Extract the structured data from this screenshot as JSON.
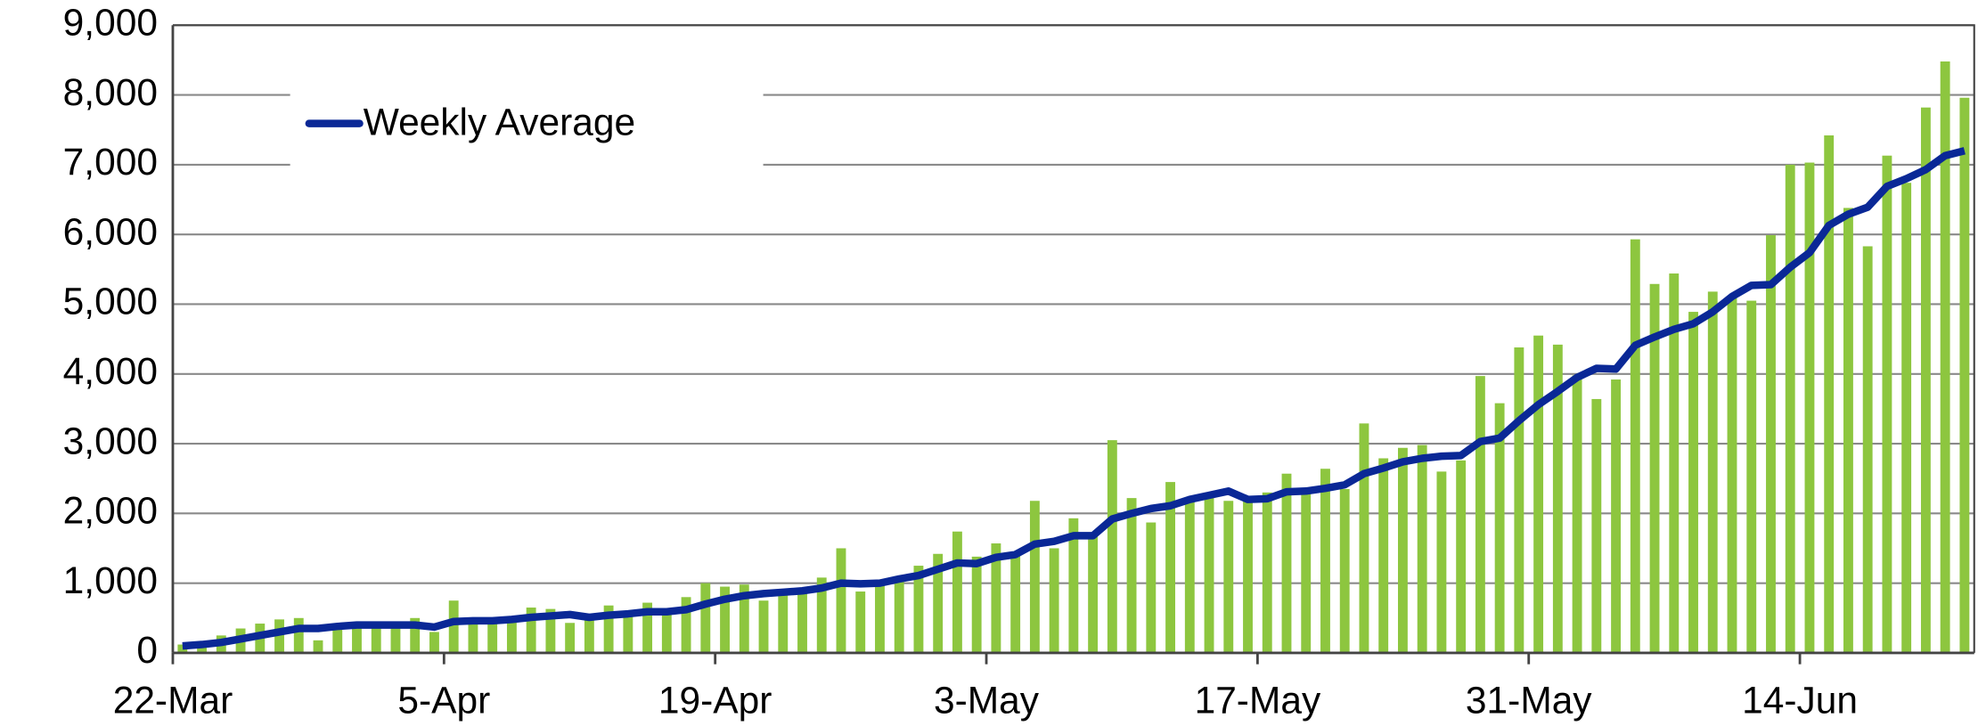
{
  "chart_data": {
    "type": "bar-line",
    "categories": [
      "22-Mar",
      null,
      null,
      null,
      null,
      null,
      null,
      null,
      null,
      null,
      null,
      null,
      null,
      null,
      "5-Apr",
      null,
      null,
      null,
      null,
      null,
      null,
      null,
      null,
      null,
      null,
      null,
      null,
      null,
      "19-Apr",
      null,
      null,
      null,
      null,
      null,
      null,
      null,
      null,
      null,
      null,
      null,
      null,
      null,
      "3-May",
      null,
      null,
      null,
      null,
      null,
      null,
      null,
      null,
      null,
      null,
      null,
      null,
      null,
      "17-May",
      null,
      null,
      null,
      null,
      null,
      null,
      null,
      null,
      null,
      null,
      null,
      null,
      null,
      "31-May",
      null,
      null,
      null,
      null,
      null,
      null,
      null,
      null,
      null,
      null,
      null,
      null,
      null,
      "14-Jun",
      null,
      null,
      null,
      null,
      null,
      null,
      null,
      null
    ],
    "series": [
      {
        "type": "bar",
        "color": "#8dc63f",
        "values": [
          120,
          150,
          250,
          350,
          420,
          480,
          500,
          180,
          380,
          350,
          380,
          400,
          500,
          300,
          750,
          450,
          430,
          500,
          650,
          630,
          430,
          550,
          680,
          600,
          720,
          620,
          800,
          1000,
          950,
          980,
          750,
          850,
          900,
          1080,
          1500,
          880,
          970,
          1100,
          1250,
          1420,
          1740,
          1380,
          1570,
          1450,
          2180,
          1500,
          1930,
          1700,
          3050,
          2220,
          1870,
          2450,
          2230,
          2250,
          2180,
          2230,
          2300,
          2570,
          2350,
          2640,
          2350,
          3290,
          2790,
          2940,
          2980,
          2600,
          2760,
          3970,
          3580,
          4380,
          4550,
          4420,
          3980,
          3640,
          3920,
          5930,
          5290,
          5440,
          4890,
          5180,
          5100,
          5050,
          5990,
          7000,
          7030,
          7420,
          6380,
          5830,
          7130,
          6740,
          7820,
          8480,
          7960
        ]
      },
      {
        "type": "line",
        "name": "Weekly Average",
        "color": "#0a2896",
        "values": [
          100,
          120,
          150,
          200,
          250,
          300,
          350,
          350,
          380,
          400,
          400,
          400,
          400,
          370,
          450,
          460,
          460,
          480,
          510,
          530,
          550,
          510,
          540,
          560,
          590,
          590,
          620,
          700,
          770,
          820,
          850,
          870,
          890,
          930,
          1000,
          990,
          1000,
          1060,
          1110,
          1200,
          1290,
          1280,
          1370,
          1410,
          1560,
          1600,
          1680,
          1680,
          1920,
          2000,
          2070,
          2110,
          2200,
          2260,
          2320,
          2200,
          2210,
          2310,
          2320,
          2360,
          2410,
          2570,
          2650,
          2740,
          2790,
          2820,
          2830,
          3030,
          3080,
          3330,
          3560,
          3750,
          3950,
          4080,
          4070,
          4410,
          4530,
          4640,
          4720,
          4890,
          5110,
          5270,
          5280,
          5530,
          5740,
          6130,
          6290,
          6390,
          6690,
          6800,
          6930,
          7130,
          7200
        ]
      }
    ],
    "ylim": [
      0,
      9000
    ],
    "yticks": [
      0,
      {
        "value": 1000,
        "label": "1,000"
      },
      {
        "value": 2000,
        "label": "2,000"
      },
      {
        "value": 3000,
        "label": "3,000"
      },
      {
        "value": 4000,
        "label": "4,000"
      },
      {
        "value": 5000,
        "label": "5,000"
      },
      {
        "value": 6000,
        "label": "6,000"
      },
      {
        "value": 7000,
        "label": "7,000"
      },
      {
        "value": 8000,
        "label": "8,000"
      },
      {
        "value": 9000,
        "label": "9,000"
      }
    ],
    "grid": true,
    "legend": "upper left"
  }
}
